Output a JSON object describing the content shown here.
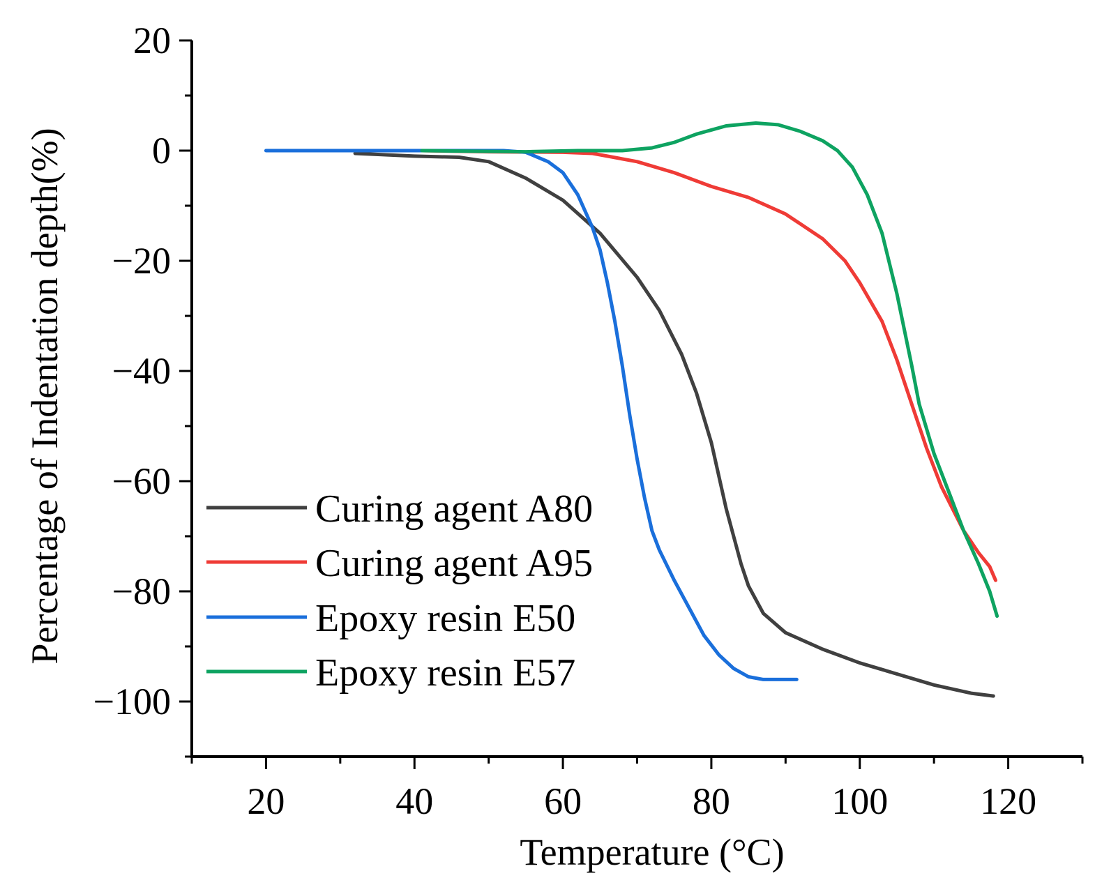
{
  "chart_data": {
    "type": "line",
    "title": "",
    "xlabel": "Temperature (°C)",
    "ylabel": "Percentage of Indentation depth(%)",
    "xlim": [
      10,
      130
    ],
    "ylim": [
      -110,
      20
    ],
    "xticks": [
      20,
      40,
      60,
      80,
      100,
      120
    ],
    "xtick_labels": [
      "20",
      "40",
      "60",
      "80",
      "100",
      "120"
    ],
    "yticks": [
      20,
      0,
      -20,
      -40,
      -60,
      -80,
      -100
    ],
    "ytick_labels": [
      "20",
      "0",
      "−20",
      "−40",
      "−60",
      "−80",
      "−100"
    ],
    "grid": false,
    "legend_position": "bottom-left",
    "series": [
      {
        "name": "Curing agent A80",
        "color": "#404040",
        "points": [
          [
            32,
            -0.5
          ],
          [
            40,
            -1
          ],
          [
            46,
            -1.2
          ],
          [
            50,
            -2
          ],
          [
            55,
            -5
          ],
          [
            60,
            -9
          ],
          [
            65,
            -15
          ],
          [
            70,
            -23
          ],
          [
            73,
            -29
          ],
          [
            76,
            -37
          ],
          [
            78,
            -44
          ],
          [
            80,
            -53
          ],
          [
            82,
            -65
          ],
          [
            84,
            -75
          ],
          [
            85,
            -79
          ],
          [
            87,
            -84
          ],
          [
            90,
            -87.5
          ],
          [
            95,
            -90.5
          ],
          [
            100,
            -93
          ],
          [
            105,
            -95
          ],
          [
            110,
            -97
          ],
          [
            115,
            -98.5
          ],
          [
            118,
            -99
          ]
        ]
      },
      {
        "name": "Curing agent A95",
        "color": "#ef3b36",
        "points": [
          [
            41,
            0
          ],
          [
            50,
            -0.2
          ],
          [
            60,
            -0.3
          ],
          [
            64,
            -0.5
          ],
          [
            70,
            -2
          ],
          [
            75,
            -4
          ],
          [
            80,
            -6.5
          ],
          [
            85,
            -8.5
          ],
          [
            90,
            -11.5
          ],
          [
            95,
            -16
          ],
          [
            98,
            -20
          ],
          [
            100,
            -24
          ],
          [
            103,
            -31
          ],
          [
            105,
            -38
          ],
          [
            107,
            -46
          ],
          [
            109,
            -54
          ],
          [
            111,
            -61
          ],
          [
            114,
            -69
          ],
          [
            116,
            -73
          ],
          [
            117.5,
            -75.5
          ],
          [
            118.3,
            -78
          ]
        ]
      },
      {
        "name": "Epoxy resin E50",
        "color": "#1a6fdb",
        "points": [
          [
            20,
            0
          ],
          [
            40,
            0
          ],
          [
            52,
            0
          ],
          [
            55,
            -0.3
          ],
          [
            58,
            -2
          ],
          [
            60,
            -4
          ],
          [
            62,
            -8
          ],
          [
            63,
            -11
          ],
          [
            64,
            -14
          ],
          [
            65,
            -18
          ],
          [
            66,
            -24
          ],
          [
            67,
            -31
          ],
          [
            68,
            -39
          ],
          [
            69,
            -48
          ],
          [
            70,
            -56
          ],
          [
            71,
            -63
          ],
          [
            72,
            -69
          ],
          [
            73,
            -72.5
          ],
          [
            75,
            -78
          ],
          [
            77,
            -83
          ],
          [
            79,
            -88
          ],
          [
            81,
            -91.5
          ],
          [
            83,
            -94
          ],
          [
            85,
            -95.5
          ],
          [
            87,
            -96
          ],
          [
            90,
            -96
          ],
          [
            91.5,
            -96
          ]
        ]
      },
      {
        "name": "Epoxy resin E57",
        "color": "#0ea361",
        "points": [
          [
            41,
            0
          ],
          [
            55,
            -0.2
          ],
          [
            62,
            0
          ],
          [
            68,
            0
          ],
          [
            72,
            0.5
          ],
          [
            75,
            1.5
          ],
          [
            78,
            3
          ],
          [
            82,
            4.5
          ],
          [
            86,
            5
          ],
          [
            89,
            4.7
          ],
          [
            92,
            3.5
          ],
          [
            95,
            1.8
          ],
          [
            97,
            0
          ],
          [
            99,
            -3
          ],
          [
            101,
            -8
          ],
          [
            103,
            -15
          ],
          [
            105,
            -26
          ],
          [
            107,
            -39
          ],
          [
            108,
            -46
          ],
          [
            110,
            -55
          ],
          [
            112,
            -62
          ],
          [
            114,
            -69
          ],
          [
            116,
            -75
          ],
          [
            117.5,
            -80
          ],
          [
            118.5,
            -84.5
          ]
        ]
      }
    ]
  }
}
